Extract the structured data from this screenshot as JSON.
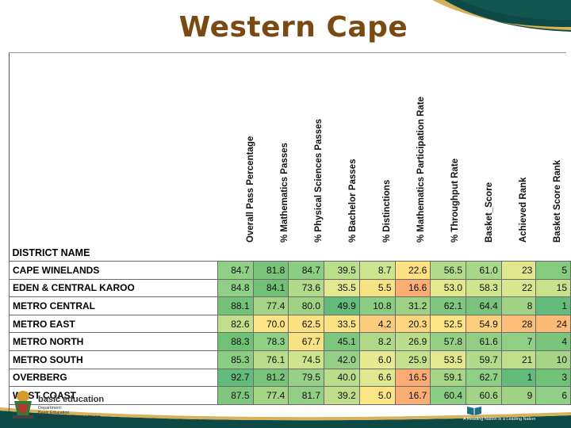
{
  "slide": {
    "title": "Western Cape"
  },
  "table": {
    "district_header": "DISTRICT NAME",
    "columns": [
      "Overall  Pass Percentage",
      "% Mathematics Passes",
      "% Physical Sciences Passes",
      "% Bachelor Passes",
      "% Distinctions",
      "% Mathematics Participation Rate",
      "% Throughput Rate",
      "Basket_Score",
      "Achieved Rank",
      "Basket Score Rank"
    ],
    "rows": [
      {
        "name": "CAPE WINELANDS",
        "values": [
          "84.7",
          "81.8",
          "84.7",
          "39.5",
          "8.7",
          "22.6",
          "56.5",
          "61.0",
          "23",
          "5"
        ]
      },
      {
        "name": "EDEN & CENTRAL KAROO",
        "values": [
          "84.8",
          "84.1",
          "73.6",
          "35.5",
          "5.5",
          "16.6",
          "53.0",
          "58.3",
          "22",
          "15"
        ]
      },
      {
        "name": "METRO CENTRAL",
        "values": [
          "88.1",
          "77.4",
          "80.0",
          "49.9",
          "10.8",
          "31.2",
          "62.1",
          "64.4",
          "8",
          "1"
        ]
      },
      {
        "name": "METRO EAST",
        "values": [
          "82.6",
          "70.0",
          "62.5",
          "33.5",
          "4.2",
          "20.3",
          "52.5",
          "54.9",
          "28",
          "24"
        ]
      },
      {
        "name": "METRO NORTH",
        "values": [
          "88.3",
          "78.3",
          "67.7",
          "45.1",
          "8.2",
          "26.9",
          "57.8",
          "61.6",
          "7",
          "4"
        ]
      },
      {
        "name": "METRO SOUTH",
        "values": [
          "85.3",
          "76.1",
          "74.5",
          "42.0",
          "6.0",
          "25.9",
          "53.5",
          "59.7",
          "21",
          "10"
        ]
      },
      {
        "name": "OVERBERG",
        "values": [
          "92.7",
          "81.2",
          "79.5",
          "40.0",
          "6.6",
          "16.5",
          "59.1",
          "62.7",
          "1",
          "3"
        ]
      },
      {
        "name": "WEST COAST",
        "values": [
          "87.5",
          "77.4",
          "81.7",
          "39.2",
          "5.0",
          "16.7",
          "60.4",
          "60.6",
          "9",
          "6"
        ]
      }
    ],
    "cell_colors": [
      [
        "#8fcf86",
        "#79c47a",
        "#8ccd84",
        "#b9df8d",
        "#cde491",
        "#ffe083",
        "#b2db8b",
        "#a9d789",
        "#dfe88f",
        "#86ca80"
      ],
      [
        "#8fcf86",
        "#70c075",
        "#b1da8a",
        "#e3e890",
        "#f7e385",
        "#fbad74",
        "#e4e98f",
        "#cfe48d",
        "#d9e78f",
        "#c9e18c"
      ],
      [
        "#73c277",
        "#a5d487",
        "#9fd285",
        "#63bc7b",
        "#8ccd84",
        "#9fd285",
        "#7fc67e",
        "#79c47a",
        "#a0d386",
        "#63bc7b"
      ],
      [
        "#c2df8b",
        "#fee484",
        "#fde183",
        "#fde283",
        "#fccc7d",
        "#fed680",
        "#fee483",
        "#fccf7e",
        "#fbbf7a",
        "#fbba78"
      ],
      [
        "#70c075",
        "#8fcf86",
        "#f6e285",
        "#7ec67e",
        "#b0da89",
        "#b9dd8b",
        "#95cf86",
        "#92cf85",
        "#8fcf86",
        "#7ac47b"
      ],
      [
        "#8ccd84",
        "#b9dd8b",
        "#cfe48d",
        "#96d086",
        "#e7ea90",
        "#c4e08c",
        "#e3e890",
        "#b1da8a",
        "#c0de8b",
        "#a6d588"
      ],
      [
        "#63bc7b",
        "#79c47a",
        "#99d087",
        "#b9dd8b",
        "#dfe88f",
        "#fbab73",
        "#a6d588",
        "#8fcf86",
        "#63bc7b",
        "#71c176"
      ],
      [
        "#80c67e",
        "#a5d487",
        "#92cf85",
        "#bfdd8b",
        "#fbe584",
        "#fbae74",
        "#8ccd84",
        "#a2d387",
        "#9fd285",
        "#8fcf86"
      ]
    ]
  },
  "logos": {
    "left_text_1": "basic education",
    "left_text_2": "Department:",
    "left_text_3": "Basic Education",
    "left_text_4": "REPUBLIC OF SOUTH AFRICA",
    "right_text": "A Reading Nation is a Leading Nation"
  }
}
